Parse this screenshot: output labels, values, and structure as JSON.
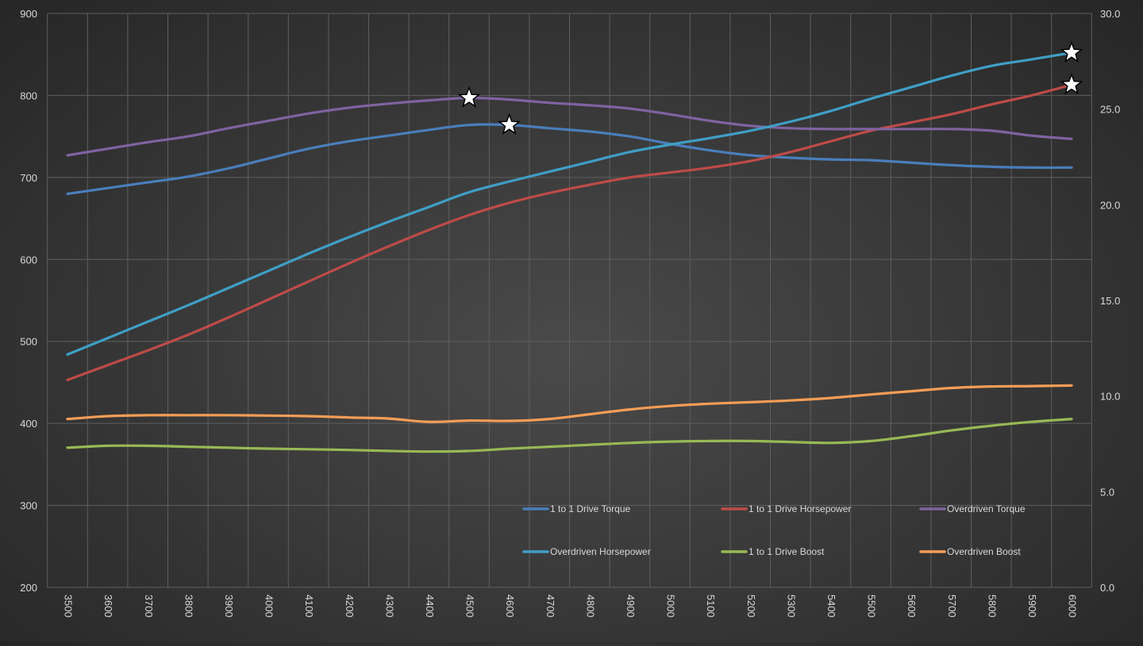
{
  "chart_data": {
    "type": "line",
    "title": "",
    "xlabel": "",
    "ylabel": "",
    "y2label": "",
    "x": [
      3500,
      3600,
      3700,
      3800,
      3900,
      4000,
      4100,
      4200,
      4300,
      4400,
      4500,
      4600,
      4700,
      4800,
      4900,
      5000,
      5100,
      5200,
      5300,
      5400,
      5500,
      5600,
      5700,
      5800,
      5900,
      6000
    ],
    "x_tick_labels": [
      "3500",
      "3600",
      "3700",
      "3800",
      "3900",
      "4000",
      "4100",
      "4200",
      "4300",
      "4400",
      "4500",
      "4600",
      "4700",
      "4800",
      "4900",
      "5000",
      "5100",
      "5200",
      "5300",
      "5400",
      "5500",
      "5600",
      "5700",
      "5800",
      "5900",
      "6000"
    ],
    "ylim": [
      200,
      900
    ],
    "y_ticks": [
      "200",
      "300",
      "400",
      "500",
      "600",
      "700",
      "800",
      "900"
    ],
    "y2lim": [
      0,
      30
    ],
    "y2_ticks": [
      "0.0",
      "5.0",
      "10.0",
      "15.0",
      "20.0",
      "25.0",
      "30.0"
    ],
    "grid": true,
    "legend_position": "bottom-right",
    "series": [
      {
        "name": "1 to 1 Drive Torque",
        "axis": "left",
        "color": "#4a7ebb",
        "values": [
          680,
          687,
          694,
          701,
          711,
          723,
          735,
          744,
          751,
          758,
          764,
          764,
          760,
          756,
          750,
          741,
          733,
          727,
          724,
          722,
          721,
          718,
          715,
          713,
          712,
          712
        ]
      },
      {
        "name": "1 to 1 Drive Horsepower",
        "axis": "left",
        "color": "#be4b48",
        "values": [
          453,
          471,
          489,
          508,
          529,
          551,
          573,
          595,
          616,
          636,
          654,
          669,
          681,
          691,
          700,
          706,
          712,
          720,
          731,
          744,
          757,
          767,
          777,
          789,
          800,
          813
        ]
      },
      {
        "name": "Overdriven Torque",
        "axis": "left",
        "color": "#7f63a1",
        "values": [
          727,
          735,
          743,
          750,
          760,
          769,
          778,
          785,
          790,
          794,
          797,
          795,
          791,
          788,
          784,
          777,
          769,
          763,
          760,
          759,
          759,
          759,
          759,
          757,
          751,
          747
        ]
      },
      {
        "name": "Overdriven Horsepower",
        "axis": "left",
        "color": "#3f9fc6",
        "values": [
          484,
          504,
          524,
          544,
          565,
          586,
          607,
          627,
          646,
          664,
          682,
          695,
          707,
          719,
          731,
          740,
          748,
          757,
          768,
          781,
          796,
          810,
          824,
          836,
          844,
          852
        ]
      },
      {
        "name": "1 to 1 Drive Boost",
        "axis": "right",
        "color": "#98b954",
        "values": [
          7.3,
          7.4,
          7.4,
          7.35,
          7.3,
          7.25,
          7.22,
          7.18,
          7.13,
          7.1,
          7.13,
          7.25,
          7.35,
          7.45,
          7.55,
          7.62,
          7.65,
          7.65,
          7.6,
          7.55,
          7.65,
          7.9,
          8.2,
          8.45,
          8.65,
          8.8
        ]
      },
      {
        "name": "Overdriven Boost",
        "axis": "right",
        "color": "#f59d56",
        "values": [
          8.8,
          8.95,
          9.0,
          9.0,
          9.0,
          8.98,
          8.95,
          8.88,
          8.82,
          8.65,
          8.72,
          8.7,
          8.8,
          9.05,
          9.3,
          9.48,
          9.6,
          9.68,
          9.77,
          9.9,
          10.08,
          10.25,
          10.42,
          10.5,
          10.52,
          10.55
        ]
      }
    ],
    "markers": [
      {
        "shape": "star",
        "series": "Overdriven Torque",
        "x": 4500,
        "y": 797
      },
      {
        "shape": "star",
        "series": "1 to 1 Drive Torque",
        "x": 4600,
        "y": 764
      },
      {
        "shape": "star",
        "series": "Overdriven Horsepower",
        "x": 6000,
        "y": 852
      },
      {
        "shape": "star",
        "series": "1 to 1 Drive Horsepower",
        "x": 6000,
        "y": 813
      }
    ]
  },
  "colors": {
    "grid": "#5f5f5f",
    "axis_text": "#d9d9d9",
    "legend_text": "#d9d9d9",
    "star_fill": "#ffffff",
    "star_stroke": "#000000"
  }
}
